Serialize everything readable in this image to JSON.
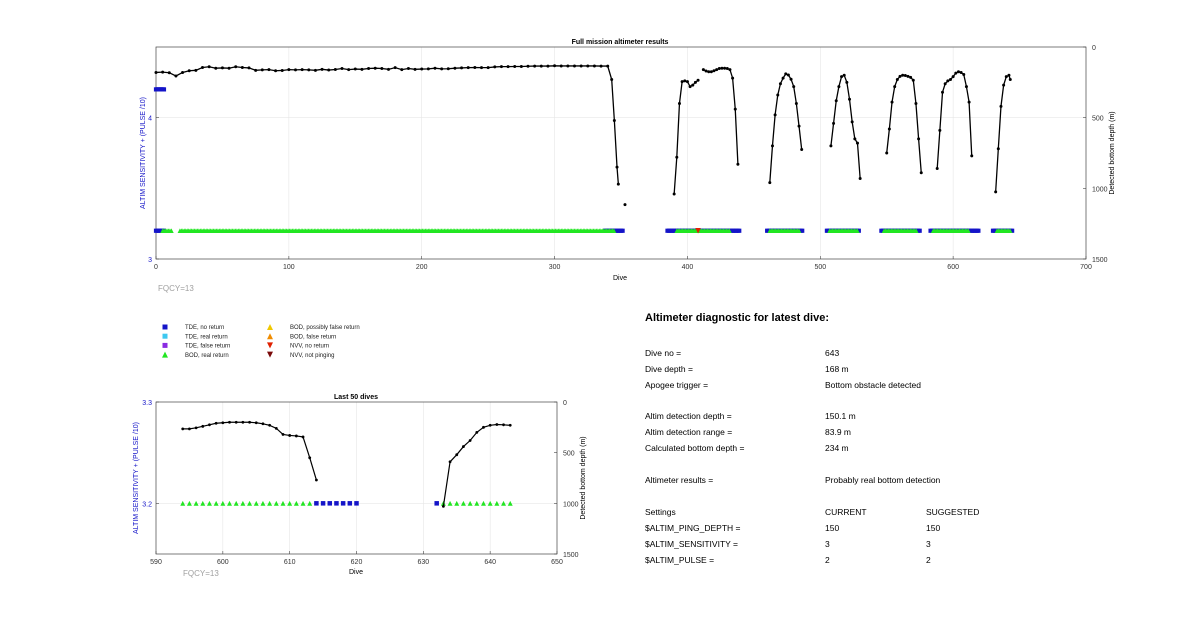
{
  "colors": {
    "tde_no_return": "#1414c8",
    "tde_real_return": "#3ec8f0",
    "tde_false_return": "#8a2be2",
    "bod_real_return": "#22e622",
    "bod_possibly_false": "#f0c800",
    "bod_false_return": "#f08c00",
    "nvv_no_return": "#e02000",
    "nvv_not_pinging": "#7a0a0a",
    "trace": "#000000",
    "left_axis": "#1414c8",
    "fqcy": "#a0a0a0"
  },
  "legend": [
    {
      "label": "TDE, no return",
      "marker": "square",
      "color": "#1414c8"
    },
    {
      "label": "TDE, real return",
      "marker": "square",
      "color": "#3ec8f0"
    },
    {
      "label": "TDE, false return",
      "marker": "square",
      "color": "#8a2be2"
    },
    {
      "label": "BOD, real return",
      "marker": "triangle-up",
      "color": "#22e622"
    },
    {
      "label": "BOD, possibly false return",
      "marker": "triangle-up",
      "color": "#f0c800"
    },
    {
      "label": "BOD, false return",
      "marker": "triangle-up",
      "color": "#f08c00"
    },
    {
      "label": "NVV, no return",
      "marker": "triangle-down",
      "color": "#e02000"
    },
    {
      "label": "NVV, not pinging",
      "marker": "triangle-down",
      "color": "#7a0a0a"
    }
  ],
  "chart_data": [
    {
      "type": "scatter",
      "title": "Full mission altimeter results",
      "xlabel": "Dive",
      "ylabel": "ALTIM SENSITIVITY + (PULSE /10)",
      "y2label": "Detected bottom depth (m)",
      "xlim": [
        0,
        700
      ],
      "ylim": [
        3,
        4.5
      ],
      "y2lim": [
        1500,
        0
      ],
      "x_ticks": [
        0,
        100,
        200,
        300,
        400,
        500,
        600,
        700
      ],
      "y_ticks": [
        3,
        4
      ],
      "y2_ticks": [
        0,
        500,
        1000,
        1500
      ],
      "grid": true,
      "note": "FQCY=13",
      "tde_no_return_segments": [
        [
          0,
          6
        ],
        [
          338,
          352
        ],
        [
          385,
          440
        ],
        [
          460,
          487
        ],
        [
          505,
          530
        ],
        [
          546,
          575
        ],
        [
          583,
          620
        ],
        [
          630,
          645
        ]
      ],
      "tde_no_return_y": 4.2,
      "tde_no_return_early_x": [
        0,
        1,
        2,
        3,
        4,
        5,
        6
      ],
      "bod_real_return_segments": [
        [
          5,
          12
        ],
        [
          18,
          345
        ],
        [
          392,
          432
        ],
        [
          462,
          485
        ],
        [
          507,
          528
        ],
        [
          548,
          573
        ],
        [
          585,
          612
        ],
        [
          633,
          643
        ]
      ],
      "bod_real_return_y": 3.2,
      "nvv_no_return_points": [
        [
          408,
          3.2
        ]
      ],
      "bottom_depth_series": [
        {
          "x": [
            0,
            5,
            10,
            15,
            20,
            25,
            30,
            35,
            40,
            45,
            50,
            55,
            60,
            65,
            70,
            75,
            80,
            85,
            90,
            95,
            100,
            105,
            110,
            115,
            120,
            125,
            130,
            135,
            140,
            145,
            150,
            155,
            160,
            165,
            170,
            175,
            180,
            185,
            190,
            195,
            200,
            205,
            210,
            215,
            220,
            225,
            230,
            235,
            240,
            245,
            250,
            255,
            260,
            265,
            270,
            275,
            280,
            285,
            290,
            295,
            300,
            305,
            310,
            315,
            320,
            325,
            330,
            335,
            340,
            343,
            345,
            347,
            348
          ],
          "y": [
            180,
            178,
            182,
            205,
            180,
            168,
            165,
            145,
            140,
            150,
            148,
            150,
            140,
            145,
            148,
            165,
            162,
            160,
            168,
            166,
            160,
            162,
            160,
            162,
            165,
            158,
            163,
            159,
            152,
            160,
            156,
            158,
            152,
            150,
            152,
            158,
            146,
            160,
            152,
            158,
            156,
            155,
            150,
            155,
            154,
            150,
            148,
            146,
            145,
            146,
            146,
            141,
            139,
            139,
            138,
            138,
            136,
            135,
            135,
            135,
            133,
            134,
            134,
            134,
            134,
            134,
            134,
            135,
            135,
            230,
            520,
            850,
            970
          ]
        },
        {
          "x": [
            353
          ],
          "y": [
            1115
          ]
        },
        {
          "x": [
            390,
            392,
            394,
            396,
            398,
            400,
            402,
            404,
            406,
            408
          ],
          "y": [
            1040,
            780,
            400,
            245,
            240,
            245,
            280,
            270,
            250,
            235
          ]
        },
        {
          "x": [
            412,
            414,
            416,
            418,
            420,
            422,
            424,
            426,
            428,
            430,
            432,
            434,
            436,
            438
          ],
          "y": [
            160,
            170,
            175,
            175,
            168,
            160,
            152,
            150,
            150,
            152,
            160,
            220,
            440,
            830
          ]
        },
        {
          "x": [
            462,
            464,
            466,
            468,
            470,
            472,
            474,
            476,
            478,
            480,
            482,
            484,
            486
          ],
          "y": [
            960,
            700,
            480,
            340,
            260,
            220,
            190,
            198,
            228,
            280,
            400,
            560,
            725
          ]
        },
        {
          "x": [
            508,
            510,
            512,
            514,
            516,
            518,
            520,
            522,
            524,
            526,
            528,
            530
          ],
          "y": [
            700,
            540,
            380,
            280,
            210,
            200,
            250,
            370,
            530,
            650,
            680,
            930
          ]
        },
        {
          "x": [
            550,
            552,
            554,
            556,
            558,
            560,
            562,
            564,
            566,
            568,
            570,
            572,
            574,
            576
          ],
          "y": [
            750,
            580,
            390,
            280,
            230,
            208,
            200,
            202,
            208,
            215,
            235,
            400,
            650,
            890
          ]
        },
        {
          "x": [
            588,
            590,
            592,
            594,
            596,
            598,
            600,
            602,
            604,
            606,
            608,
            610,
            612,
            614
          ],
          "y": [
            860,
            590,
            320,
            260,
            240,
            230,
            210,
            185,
            175,
            180,
            195,
            280,
            390,
            770
          ]
        },
        {
          "x": [
            632,
            634,
            636,
            638,
            640,
            642,
            643
          ],
          "y": [
            1025,
            720,
            420,
            270,
            210,
            200,
            230
          ]
        }
      ]
    },
    {
      "type": "scatter",
      "title": "Last 50 dives",
      "xlabel": "Dive",
      "ylabel": "ALTIM SENSITIVITY + (PULSE /10)",
      "y2label": "Detected bottom depth (m)",
      "xlim": [
        590,
        650
      ],
      "ylim": [
        3.15,
        3.3
      ],
      "y2lim": [
        1500,
        0
      ],
      "x_ticks": [
        590,
        600,
        610,
        620,
        630,
        640,
        650
      ],
      "y_ticks": [
        3.2,
        3.3
      ],
      "y2_ticks": [
        0,
        500,
        1000,
        1500
      ],
      "grid": true,
      "note": "FQCY=13",
      "tde_no_return_x": [
        614,
        615,
        616,
        617,
        618,
        619,
        620,
        632
      ],
      "tde_no_return_y": 3.2,
      "bod_real_return_x": [
        594,
        595,
        596,
        597,
        598,
        599,
        600,
        601,
        602,
        603,
        604,
        605,
        606,
        607,
        608,
        609,
        610,
        611,
        612,
        613,
        633,
        634,
        635,
        636,
        637,
        638,
        639,
        640,
        641,
        642,
        643
      ],
      "bod_real_return_y": 3.2,
      "bottom_depth_series": [
        {
          "x": [
            594,
            595,
            596,
            597,
            598,
            599,
            600,
            601,
            602,
            603,
            604,
            605,
            606,
            607,
            608,
            609,
            610,
            611,
            612,
            613,
            614
          ],
          "y": [
            265,
            265,
            255,
            240,
            225,
            210,
            205,
            200,
            200,
            200,
            200,
            205,
            215,
            230,
            260,
            320,
            330,
            335,
            345,
            550,
            770
          ]
        },
        {
          "x": [
            633,
            634,
            635,
            636,
            637,
            638,
            639,
            640,
            641,
            642,
            643
          ],
          "y": [
            1030,
            590,
            520,
            440,
            380,
            300,
            250,
            230,
            222,
            225,
            230
          ]
        }
      ]
    }
  ],
  "diagnostic": {
    "title": "Altimeter diagnostic for latest dive:",
    "rows": [
      {
        "label": "Dive no =",
        "value": "643"
      },
      {
        "label": "Dive depth =",
        "value": "168 m"
      },
      {
        "label": "Apogee trigger =",
        "value": "Bottom obstacle detected"
      },
      {
        "label": "Altim detection depth =",
        "value": "150.1 m"
      },
      {
        "label": "Altim detection range =",
        "value": "83.9 m"
      },
      {
        "label": "Calculated bottom depth =",
        "value": "234 m"
      },
      {
        "label": "Altimeter results =",
        "value": "Probably real bottom detection"
      },
      {
        "label": "Settings",
        "value": "CURRENT",
        "value2": "SUGGESTED"
      },
      {
        "label": "$ALTIM_PING_DEPTH =",
        "value": "150",
        "value2": "150"
      },
      {
        "label": "$ALTIM_SENSITIVITY =",
        "value": "3",
        "value2": "3"
      },
      {
        "label": "$ALTIM_PULSE =",
        "value": "2",
        "value2": "2"
      }
    ]
  }
}
